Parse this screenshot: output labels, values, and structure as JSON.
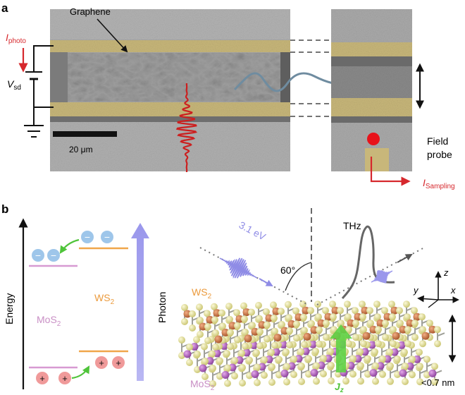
{
  "panel_a": {
    "letter": "a",
    "graphene_label": "Graphene",
    "i_photo": "I",
    "i_photo_sub": "photo",
    "v_sd": "V",
    "v_sd_sub": "sd",
    "scale_bar": "20 μm",
    "field_probe_line1": "Field",
    "field_probe_line2": "probe",
    "i_sampling": "I",
    "i_sampling_sub": "Sampling"
  },
  "panel_b": {
    "letter": "b",
    "energy_label": "Energy",
    "photon_label": "Photon",
    "mos2_left": "MoS",
    "mos2_left_sub": "2",
    "ws2_left": "WS",
    "ws2_left_sub": "2",
    "electron_sign": "−",
    "hole_sign": "+",
    "pump_energy": "3.1 eV",
    "angle": "60°",
    "thz_label": "THz",
    "ws2_right": "WS",
    "ws2_right_sub": "2",
    "mos2_right": "MoS",
    "mos2_right_sub": "2",
    "current_label": "J",
    "current_sub": "z",
    "thickness": "<0.7 nm",
    "axis_z": "z",
    "axis_y": "y",
    "axis_x": "x"
  },
  "colors": {
    "red": "#d6282d",
    "electrode_gold": "#c8b77a",
    "sem_gray": "#a9a9a9",
    "mos2_pink": "#d79ad2",
    "ws2_orange": "#f0a64a",
    "photon_lavender": "#a5a3ef",
    "electron_blue": "#9ec6ea",
    "hole_pink": "#f09a9a",
    "green": "#5ed146",
    "s_yellow": "#e6e29c",
    "w_orange": "#c87344",
    "mo_purple": "#b064be"
  }
}
